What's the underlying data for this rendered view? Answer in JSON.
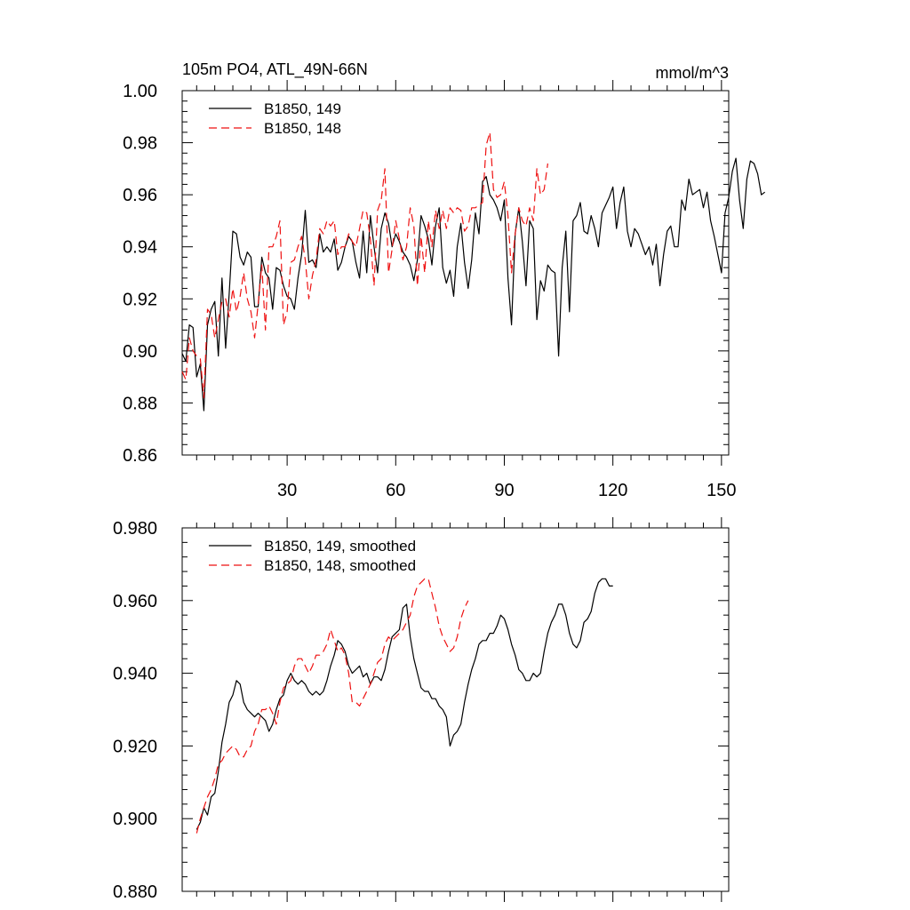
{
  "chart_data": [
    {
      "type": "line",
      "title": "105m PO4, ATL_49N-66N",
      "units": "mmol/m^3",
      "xlim": [
        1,
        152
      ],
      "ylim": [
        0.86,
        1.0
      ],
      "x_ticks": [
        30,
        60,
        90,
        120,
        150
      ],
      "y_ticks": [
        0.86,
        0.88,
        0.9,
        0.92,
        0.94,
        0.96,
        0.98,
        1.0
      ],
      "y_tick_labels": [
        "0.86",
        "0.88",
        "0.90",
        "0.92",
        "0.94",
        "0.96",
        "0.98",
        "1.00"
      ],
      "legend_position": "top-left",
      "series": [
        {
          "name": "B1850, 149",
          "color": "#000000",
          "dash": "solid",
          "x_start": 1,
          "values": [
            0.899,
            0.896,
            0.91,
            0.909,
            0.89,
            0.895,
            0.877,
            0.91,
            0.916,
            0.919,
            0.898,
            0.928,
            0.901,
            0.922,
            0.946,
            0.945,
            0.936,
            0.933,
            0.938,
            0.936,
            0.917,
            0.917,
            0.936,
            0.93,
            0.928,
            0.916,
            0.932,
            0.931,
            0.925,
            0.921,
            0.92,
            0.916,
            0.928,
            0.937,
            0.954,
            0.934,
            0.935,
            0.932,
            0.945,
            0.938,
            0.94,
            0.938,
            0.943,
            0.931,
            0.934,
            0.94,
            0.944,
            0.942,
            0.934,
            0.928,
            0.946,
            0.93,
            0.952,
            0.94,
            0.93,
            0.947,
            0.953,
            0.949,
            0.94,
            0.945,
            0.942,
            0.938,
            0.936,
            0.933,
            0.927,
            0.935,
            0.952,
            0.948,
            0.943,
            0.933,
            0.948,
            0.955,
            0.932,
            0.926,
            0.931,
            0.921,
            0.94,
            0.949,
            0.934,
            0.924,
            0.935,
            0.953,
            0.945,
            0.965,
            0.967,
            0.96,
            0.958,
            0.955,
            0.95,
            0.958,
            0.928,
            0.91,
            0.945,
            0.955,
            0.942,
            0.925,
            0.95,
            0.947,
            0.912,
            0.927,
            0.923,
            0.933,
            0.931,
            0.93,
            0.898,
            0.932,
            0.946,
            0.915,
            0.95,
            0.952,
            0.957,
            0.946,
            0.945,
            0.952,
            0.947,
            0.94,
            0.953,
            0.956,
            0.959,
            0.963,
            0.947,
            0.957,
            0.963,
            0.946,
            0.94,
            0.947,
            0.945,
            0.941,
            0.937,
            0.94,
            0.933,
            0.941,
            0.925,
            0.937,
            0.946,
            0.948,
            0.94,
            0.94,
            0.958,
            0.954,
            0.966,
            0.96,
            0.961,
            0.962,
            0.955,
            0.961,
            0.95,
            0.944,
            0.937,
            0.93,
            0.953,
            0.959,
            0.969,
            0.974,
            0.958,
            0.947,
            0.966,
            0.973,
            0.972,
            0.968,
            0.96,
            0.961
          ]
        },
        {
          "name": "B1850, 148",
          "color": "#ee1111",
          "dash": "dashed",
          "x_start": 1,
          "values": [
            0.892,
            0.889,
            0.905,
            0.9,
            0.898,
            0.897,
            0.882,
            0.916,
            0.914,
            0.905,
            0.912,
            0.919,
            0.92,
            0.913,
            0.924,
            0.915,
            0.921,
            0.93,
            0.92,
            0.915,
            0.905,
            0.918,
            0.933,
            0.908,
            0.94,
            0.94,
            0.944,
            0.95,
            0.91,
            0.915,
            0.934,
            0.935,
            0.94,
            0.944,
            0.935,
            0.92,
            0.929,
            0.935,
            0.947,
            0.945,
            0.95,
            0.948,
            0.95,
            0.937,
            0.94,
            0.94,
            0.945,
            0.942,
            0.94,
            0.947,
            0.954,
            0.953,
            0.943,
            0.925,
            0.954,
            0.958,
            0.97,
            0.93,
            0.939,
            0.95,
            0.943,
            0.935,
            0.94,
            0.955,
            0.948,
            0.925,
            0.944,
            0.93,
            0.95,
            0.94,
            0.954,
            0.947,
            0.954,
            0.947,
            0.955,
            0.953,
            0.955,
            0.954,
            0.946,
            0.948,
            0.955,
            0.955,
            0.956,
            0.957,
            0.979,
            0.984,
            0.962,
            0.959,
            0.96,
            0.965,
            0.952,
            0.93,
            0.945,
            0.955,
            0.95,
            0.948,
            0.955,
            0.95,
            0.97,
            0.96,
            0.962,
            0.972
          ]
        }
      ]
    },
    {
      "type": "line",
      "xlim": [
        1,
        152
      ],
      "ylim": [
        0.88,
        0.98
      ],
      "x_ticks": [
        30,
        60,
        90,
        120,
        150
      ],
      "y_ticks": [
        0.88,
        0.9,
        0.92,
        0.94,
        0.96,
        0.98
      ],
      "y_tick_labels": [
        "0.880",
        "0.900",
        "0.920",
        "0.940",
        "0.960",
        "0.980"
      ],
      "legend_position": "top-left",
      "series": [
        {
          "name": "B1850, 149, smoothed",
          "color": "#000000",
          "dash": "solid",
          "x_start": 5,
          "values": [
            0.897,
            0.899,
            0.903,
            0.901,
            0.906,
            0.907,
            0.913,
            0.921,
            0.926,
            0.932,
            0.934,
            0.938,
            0.937,
            0.932,
            0.93,
            0.929,
            0.928,
            0.929,
            0.928,
            0.927,
            0.924,
            0.926,
            0.93,
            0.933,
            0.934,
            0.938,
            0.94,
            0.938,
            0.937,
            0.938,
            0.937,
            0.935,
            0.934,
            0.935,
            0.934,
            0.935,
            0.938,
            0.942,
            0.945,
            0.949,
            0.948,
            0.946,
            0.942,
            0.94,
            0.941,
            0.942,
            0.939,
            0.94,
            0.937,
            0.939,
            0.939,
            0.938,
            0.941,
            0.946,
            0.95,
            0.951,
            0.952,
            0.958,
            0.959,
            0.95,
            0.944,
            0.94,
            0.936,
            0.935,
            0.935,
            0.933,
            0.933,
            0.931,
            0.93,
            0.928,
            0.92,
            0.923,
            0.924,
            0.926,
            0.932,
            0.937,
            0.941,
            0.944,
            0.948,
            0.949,
            0.949,
            0.951,
            0.951,
            0.953,
            0.956,
            0.955,
            0.952,
            0.948,
            0.945,
            0.941,
            0.94,
            0.938,
            0.938,
            0.94,
            0.939,
            0.94,
            0.946,
            0.951,
            0.954,
            0.956,
            0.959,
            0.959,
            0.956,
            0.951,
            0.948,
            0.947,
            0.949,
            0.954,
            0.955,
            0.957,
            0.962,
            0.965,
            0.966,
            0.966,
            0.964,
            0.964
          ]
        },
        {
          "name": "B1850, 148, smoothed",
          "color": "#ee1111",
          "dash": "dashed",
          "x_start": 5,
          "values": [
            0.896,
            0.9,
            0.903,
            0.906,
            0.908,
            0.911,
            0.915,
            0.916,
            0.918,
            0.919,
            0.92,
            0.919,
            0.917,
            0.917,
            0.919,
            0.92,
            0.924,
            0.926,
            0.93,
            0.93,
            0.931,
            0.929,
            0.926,
            0.932,
            0.936,
            0.937,
            0.938,
            0.942,
            0.944,
            0.944,
            0.942,
            0.94,
            0.942,
            0.945,
            0.945,
            0.946,
            0.948,
            0.952,
            0.949,
            0.946,
            0.947,
            0.945,
            0.94,
            0.932,
            0.932,
            0.931,
            0.933,
            0.935,
            0.937,
            0.94,
            0.943,
            0.944,
            0.948,
            0.95,
            0.949,
            0.95,
            0.951,
            0.952,
            0.954,
            0.956,
            0.961,
            0.964,
            0.965,
            0.966,
            0.966,
            0.962,
            0.958,
            0.953,
            0.95,
            0.948,
            0.946,
            0.947,
            0.95,
            0.955,
            0.958,
            0.96
          ]
        }
      ]
    }
  ]
}
